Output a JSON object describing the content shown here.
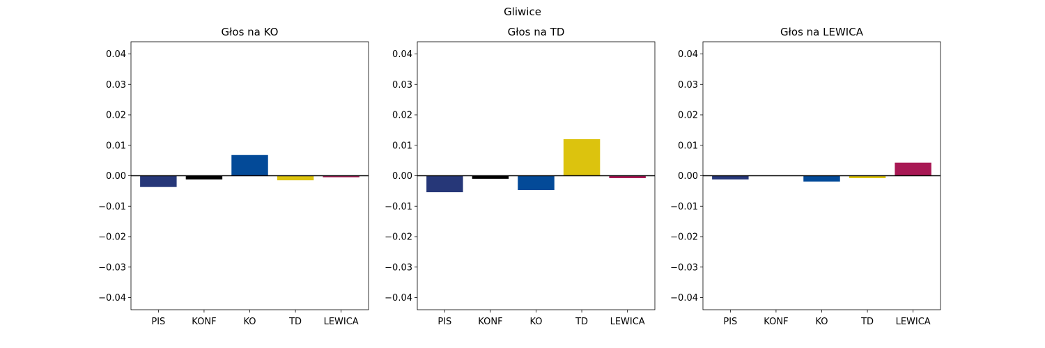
{
  "figure_title": "Gliwice",
  "chart_data": [
    {
      "type": "bar",
      "title": "Głos na KO",
      "xlabel": "",
      "ylabel": "",
      "categories": [
        "PIS",
        "KONF",
        "KO",
        "TD",
        "LEWICA"
      ],
      "values": [
        -0.0037,
        -0.0012,
        0.0068,
        -0.0015,
        -0.0005
      ],
      "colors": [
        "#263778",
        "#000000",
        "#034A98",
        "#DCC30E",
        "#A81854"
      ],
      "ylim": [
        -0.044,
        0.044
      ],
      "yticks": [
        0.04,
        0.03,
        0.02,
        0.01,
        0.0,
        -0.01,
        -0.02,
        -0.03,
        -0.04
      ],
      "ytick_labels": [
        "0.04",
        "0.03",
        "0.02",
        "0.01",
        "0.00",
        "−0.01",
        "−0.02",
        "−0.03",
        "−0.04"
      ],
      "zero_line": true,
      "grid": false
    },
    {
      "type": "bar",
      "title": "Głos na TD",
      "xlabel": "",
      "ylabel": "",
      "categories": [
        "PIS",
        "KONF",
        "KO",
        "TD",
        "LEWICA"
      ],
      "values": [
        -0.0054,
        -0.001,
        -0.0047,
        0.012,
        -0.0008
      ],
      "colors": [
        "#263778",
        "#000000",
        "#034A98",
        "#DCC30E",
        "#A81854"
      ],
      "ylim": [
        -0.044,
        0.044
      ],
      "yticks": [
        0.04,
        0.03,
        0.02,
        0.01,
        0.0,
        -0.01,
        -0.02,
        -0.03,
        -0.04
      ],
      "ytick_labels": [
        "0.04",
        "0.03",
        "0.02",
        "0.01",
        "0.00",
        "−0.01",
        "−0.02",
        "−0.03",
        "−0.04"
      ],
      "zero_line": true,
      "grid": false
    },
    {
      "type": "bar",
      "title": "Głos na LEWICA",
      "xlabel": "",
      "ylabel": "",
      "categories": [
        "PIS",
        "KONF",
        "KO",
        "TD",
        "LEWICA"
      ],
      "values": [
        -0.0012,
        0.0,
        -0.0019,
        -0.0008,
        0.0043
      ],
      "colors": [
        "#263778",
        "#000000",
        "#034A98",
        "#DCC30E",
        "#A81854"
      ],
      "ylim": [
        -0.044,
        0.044
      ],
      "yticks": [
        0.04,
        0.03,
        0.02,
        0.01,
        0.0,
        -0.01,
        -0.02,
        -0.03,
        -0.04
      ],
      "ytick_labels": [
        "0.04",
        "0.03",
        "0.02",
        "0.01",
        "0.00",
        "−0.01",
        "−0.02",
        "−0.03",
        "−0.04"
      ],
      "zero_line": true,
      "grid": false
    }
  ]
}
